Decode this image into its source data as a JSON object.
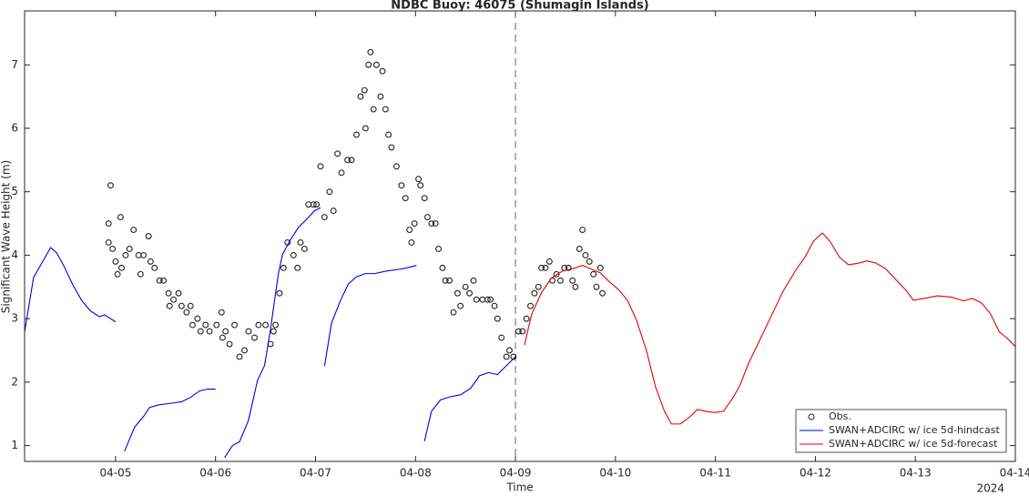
{
  "chart_data": {
    "type": "line",
    "title": "NDBC Buoy: 46075 (Shumagin Islands)",
    "y_label": "Significant Wave Height (m)",
    "x_label": "Time",
    "x_year_label": "2024",
    "xlim": [
      4.09,
      14
    ],
    "ylim": [
      0.75,
      7.85
    ],
    "xticks": [
      {
        "value": 5,
        "label": "04-05"
      },
      {
        "value": 6,
        "label": "04-06"
      },
      {
        "value": 7,
        "label": "04-07"
      },
      {
        "value": 8,
        "label": "04-08"
      },
      {
        "value": 9,
        "label": "04-09"
      },
      {
        "value": 10,
        "label": "04-10"
      },
      {
        "value": 11,
        "label": "04-11"
      },
      {
        "value": 12,
        "label": "04-12"
      },
      {
        "value": 13,
        "label": "04-13"
      },
      {
        "value": 14,
        "label": "04-14"
      }
    ],
    "yticks": [
      1,
      2,
      3,
      4,
      5,
      6,
      7
    ],
    "vline": 9,
    "grid": false,
    "legend": "lower right",
    "series": [
      {
        "name": "Obs.",
        "mode": "markers",
        "color": "#222222",
        "x": [
          4.93,
          4.93,
          4.95,
          4.97,
          5.0,
          5.02,
          5.05,
          5.06,
          5.1,
          5.14,
          5.18,
          5.23,
          5.25,
          5.28,
          5.33,
          5.35,
          5.39,
          5.44,
          5.48,
          5.53,
          5.54,
          5.58,
          5.63,
          5.66,
          5.71,
          5.75,
          5.77,
          5.82,
          5.85,
          5.9,
          5.94,
          6.01,
          6.06,
          6.07,
          6.1,
          6.14,
          6.19,
          6.24,
          6.29,
          6.33,
          6.39,
          6.43,
          6.5,
          6.55,
          6.58,
          6.6,
          6.64,
          6.68,
          6.72,
          6.78,
          6.82,
          6.85,
          6.89,
          6.93,
          6.98,
          7.01,
          7.05,
          7.09,
          7.14,
          7.18,
          7.22,
          7.26,
          7.32,
          7.36,
          7.41,
          7.45,
          7.49,
          7.5,
          7.53,
          7.55,
          7.58,
          7.61,
          7.65,
          7.67,
          7.7,
          7.73,
          7.76,
          7.81,
          7.86,
          7.9,
          7.94,
          7.96,
          7.99,
          8.03,
          8.05,
          8.09,
          8.12,
          8.16,
          8.2,
          8.23,
          8.27,
          8.3,
          8.34,
          8.38,
          8.42,
          8.45,
          8.5,
          8.54,
          8.58,
          8.61,
          8.67,
          8.72,
          8.75,
          8.79,
          8.82,
          8.86,
          8.91,
          8.94,
          8.98,
          9.03,
          9.07,
          9.11,
          9.15,
          9.19,
          9.23,
          9.26,
          9.3,
          9.34,
          9.37,
          9.41,
          9.45,
          9.49,
          9.53,
          9.57,
          9.6,
          9.64,
          9.67,
          9.7,
          9.74,
          9.78,
          9.81,
          9.85,
          9.87
        ],
        "values": [
          4.2,
          4.5,
          5.1,
          4.1,
          3.9,
          3.7,
          4.6,
          3.8,
          4.0,
          4.1,
          4.4,
          4.0,
          3.7,
          4.0,
          4.3,
          3.9,
          3.8,
          3.6,
          3.6,
          3.4,
          3.2,
          3.3,
          3.4,
          3.2,
          3.1,
          3.2,
          2.9,
          3.0,
          2.8,
          2.9,
          2.8,
          2.9,
          3.1,
          2.7,
          2.8,
          2.6,
          2.9,
          2.4,
          2.5,
          2.8,
          2.7,
          2.9,
          2.9,
          2.6,
          2.8,
          2.9,
          3.4,
          3.8,
          4.2,
          4.0,
          3.8,
          4.2,
          4.1,
          4.8,
          4.8,
          4.8,
          5.4,
          4.6,
          5.0,
          4.7,
          5.6,
          5.3,
          5.5,
          5.5,
          5.9,
          6.5,
          6.6,
          6.0,
          7.0,
          7.2,
          6.3,
          7.0,
          6.5,
          6.9,
          6.3,
          5.9,
          5.7,
          5.4,
          5.1,
          4.9,
          4.4,
          4.2,
          4.5,
          5.2,
          5.1,
          4.9,
          4.6,
          4.5,
          4.5,
          4.1,
          3.8,
          3.6,
          3.6,
          3.1,
          3.4,
          3.2,
          3.5,
          3.4,
          3.6,
          3.3,
          3.3,
          3.3,
          3.3,
          3.2,
          3.0,
          2.7,
          2.4,
          2.5,
          2.4,
          2.8,
          2.8,
          3.0,
          3.2,
          3.4,
          3.5,
          3.8,
          3.8,
          3.9,
          3.6,
          3.7,
          3.6,
          3.8,
          3.8,
          3.6,
          3.5,
          4.1,
          4.4,
          4.0,
          3.9,
          3.7,
          3.5,
          3.8,
          3.4
        ]
      },
      {
        "name": "SWAN+ADCIRC w/ ice 5d-hindcast",
        "mode": "lines",
        "color": "#0000e0",
        "x": [
          4.09,
          4.18,
          4.26,
          4.35,
          4.41,
          4.48,
          4.57,
          4.66,
          4.75,
          4.84,
          4.89,
          5.0,
          null,
          5.09,
          5.19,
          5.28,
          5.34,
          5.43,
          5.57,
          5.66,
          5.75,
          5.84,
          5.92,
          6.0,
          null,
          6.09,
          6.17,
          6.24,
          6.33,
          6.42,
          6.49,
          6.55,
          6.59,
          6.63,
          6.67,
          6.74,
          6.83,
          6.92,
          6.99,
          7.05,
          null,
          7.09,
          7.16,
          7.25,
          7.33,
          7.41,
          7.5,
          7.59,
          7.71,
          7.85,
          7.94,
          8.01,
          null,
          8.09,
          8.16,
          8.25,
          8.35,
          8.45,
          8.55,
          8.64,
          8.73,
          8.82,
          8.91,
          9.0
        ],
        "values": [
          2.79,
          3.65,
          3.87,
          4.12,
          4.04,
          3.84,
          3.54,
          3.29,
          3.12,
          3.03,
          3.06,
          2.95,
          null,
          0.91,
          1.29,
          1.46,
          1.6,
          1.64,
          1.67,
          1.69,
          1.76,
          1.86,
          1.89,
          1.89,
          null,
          0.81,
          1.0,
          1.06,
          1.4,
          2.03,
          2.26,
          2.83,
          3.29,
          3.72,
          4.01,
          4.22,
          4.44,
          4.58,
          4.7,
          4.75,
          null,
          2.25,
          2.93,
          3.29,
          3.55,
          3.66,
          3.71,
          3.71,
          3.75,
          3.78,
          3.81,
          3.84,
          null,
          1.07,
          1.54,
          1.72,
          1.77,
          1.8,
          1.9,
          2.1,
          2.15,
          2.12,
          2.26,
          2.4
        ]
      },
      {
        "name": "SWAN+ADCIRC w/ ice 5d-forecast",
        "mode": "lines",
        "color": "#e00000",
        "x": [
          9.09,
          9.16,
          9.26,
          9.36,
          9.47,
          9.58,
          9.67,
          9.76,
          9.85,
          9.94,
          10.03,
          10.12,
          10.21,
          10.31,
          10.4,
          10.49,
          10.56,
          10.65,
          10.75,
          10.82,
          10.9,
          10.99,
          11.08,
          11.17,
          11.24,
          11.33,
          11.44,
          11.57,
          11.68,
          11.81,
          11.9,
          11.98,
          12.07,
          12.15,
          12.24,
          12.33,
          12.42,
          12.51,
          12.6,
          12.7,
          12.79,
          12.91,
          12.98,
          13.09,
          13.22,
          13.36,
          13.48,
          13.57,
          13.66,
          13.75,
          13.84,
          13.92,
          14.0
        ],
        "values": [
          2.58,
          3.06,
          3.41,
          3.64,
          3.75,
          3.79,
          3.84,
          3.78,
          3.72,
          3.58,
          3.46,
          3.29,
          2.98,
          2.5,
          1.93,
          1.54,
          1.34,
          1.34,
          1.46,
          1.57,
          1.54,
          1.52,
          1.54,
          1.74,
          1.93,
          2.29,
          2.65,
          3.08,
          3.44,
          3.78,
          3.98,
          4.22,
          4.35,
          4.21,
          3.97,
          3.85,
          3.87,
          3.91,
          3.88,
          3.79,
          3.64,
          3.44,
          3.29,
          3.32,
          3.36,
          3.34,
          3.28,
          3.32,
          3.25,
          3.08,
          2.79,
          2.69,
          2.56
        ]
      }
    ]
  }
}
